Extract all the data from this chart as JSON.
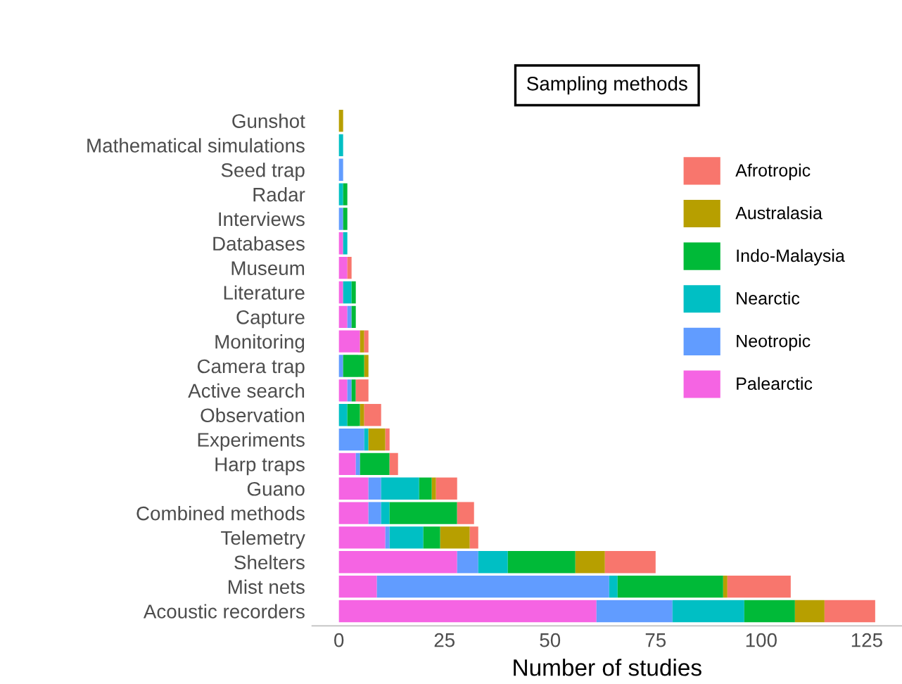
{
  "chart_data": {
    "type": "bar",
    "orientation": "horizontal",
    "stacked": true,
    "title": "Sampling methods",
    "xlabel": "Number of studies",
    "categories": [
      "Gunshot",
      "Mathematical simulations",
      "Seed trap",
      "Radar",
      "Interviews",
      "Databases",
      "Museum",
      "Literature",
      "Capture",
      "Monitoring",
      "Camera trap",
      "Active search",
      "Observation",
      "Experiments",
      "Harp traps",
      "Guano",
      "Combined methods",
      "Telemetry",
      "Shelters",
      "Mist nets",
      "Acoustic recorders"
    ],
    "series": [
      {
        "name": "Palearctic",
        "color": "#f564e3",
        "values": [
          0,
          0,
          0,
          0,
          0,
          1,
          2,
          1,
          2,
          5,
          0,
          2,
          0,
          0,
          4,
          7,
          7,
          11,
          28,
          9,
          61
        ]
      },
      {
        "name": "Neotropic",
        "color": "#619cff",
        "values": [
          0,
          0,
          1,
          0,
          1,
          0,
          0,
          0,
          1,
          0,
          1,
          1,
          0,
          6,
          1,
          3,
          3,
          1,
          5,
          55,
          18
        ]
      },
      {
        "name": "Nearctic",
        "color": "#00bfc4",
        "values": [
          0,
          1,
          0,
          1,
          0,
          1,
          0,
          2,
          0,
          0,
          0,
          0,
          2,
          1,
          0,
          9,
          2,
          8,
          7,
          2,
          17
        ]
      },
      {
        "name": "Indo-Malaysia",
        "color": "#00ba38",
        "values": [
          0,
          0,
          0,
          1,
          1,
          0,
          0,
          1,
          1,
          0,
          5,
          1,
          3,
          0,
          7,
          3,
          16,
          4,
          16,
          25,
          12
        ]
      },
      {
        "name": "Australasia",
        "color": "#b79f00",
        "values": [
          1,
          0,
          0,
          0,
          0,
          0,
          0,
          0,
          0,
          1,
          1,
          0,
          1,
          4,
          0,
          1,
          0,
          7,
          7,
          1,
          7
        ]
      },
      {
        "name": "Afrotropic",
        "color": "#f8766d",
        "values": [
          0,
          0,
          0,
          0,
          0,
          0,
          1,
          0,
          0,
          1,
          0,
          3,
          4,
          1,
          2,
          5,
          4,
          2,
          12,
          15,
          12
        ]
      }
    ],
    "xlim": [
      -6.35,
      133.35
    ],
    "xticks": [
      0,
      25,
      50,
      75,
      100,
      125
    ],
    "grid": false,
    "legend": "right"
  }
}
